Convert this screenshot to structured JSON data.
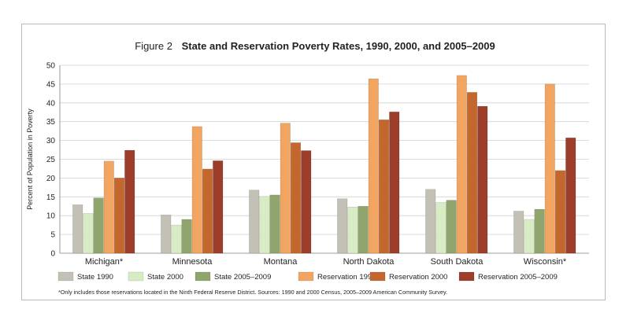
{
  "figure": {
    "label": "Figure 2",
    "title": "State and Reservation Poverty Rates, 1990, 2000, and 2005–2009",
    "footnote": "*Only includes those reservations located in the Ninth Federal Reserve District. Sources: 1990 and 2000 Census, 2005–2009 American Community Survey."
  },
  "chart_data": {
    "type": "bar",
    "title": "State and Reservation Poverty Rates, 1990, 2000, and 2005–2009",
    "xlabel": "",
    "ylabel": "Percent of Population in Poverty",
    "ylim": [
      0,
      50
    ],
    "yticks": [
      0,
      5,
      10,
      15,
      20,
      25,
      30,
      35,
      40,
      45,
      50
    ],
    "grid": true,
    "legend_position": "bottom",
    "categories": [
      "Michigan*",
      "Minnesota",
      "Montana",
      "North Dakota",
      "South Dakota",
      "Wisconsin*"
    ],
    "series": [
      {
        "name": "State 1990",
        "color": "#c3c0b6",
        "values": [
          12.9,
          10.2,
          16.8,
          14.5,
          17.0,
          11.2
        ]
      },
      {
        "name": "State 2000",
        "color": "#d7ecc4",
        "values": [
          10.6,
          7.5,
          15.1,
          12.3,
          13.5,
          9.0
        ]
      },
      {
        "name": "State 2005–2009",
        "color": "#8fa56c",
        "values": [
          14.7,
          9.0,
          15.5,
          12.5,
          14.1,
          11.7
        ]
      },
      {
        "name": "Reservation 1990",
        "color": "#f1a561",
        "values": [
          24.5,
          33.7,
          34.6,
          46.4,
          47.3,
          45.0
        ]
      },
      {
        "name": "Reservation 2000",
        "color": "#c4672e",
        "values": [
          20.0,
          22.4,
          29.4,
          35.5,
          42.8,
          22.0
        ]
      },
      {
        "name": "Reservation 2005–2009",
        "color": "#9e3e2a",
        "values": [
          27.4,
          24.6,
          27.3,
          37.6,
          39.1,
          30.7
        ]
      }
    ]
  }
}
